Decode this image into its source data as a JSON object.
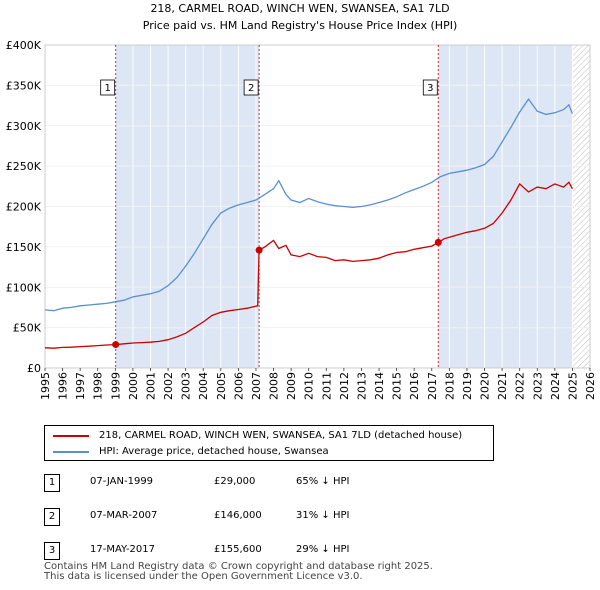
{
  "chart_data": {
    "type": "line",
    "title": "218, CARMEL ROAD, WINCH WEN, SWANSEA, SA1 7LD",
    "subtitle": "Price paid vs. HM Land Registry's House Price Index (HPI)",
    "xlim": [
      1995,
      2026
    ],
    "ylim": [
      0,
      400000
    ],
    "y_ticks": [
      0,
      50000,
      100000,
      150000,
      200000,
      250000,
      300000,
      350000,
      400000
    ],
    "y_tick_labels": [
      "£0",
      "£50K",
      "£100K",
      "£150K",
      "£200K",
      "£250K",
      "£300K",
      "£350K",
      "£400K"
    ],
    "x_ticks": [
      1995,
      1996,
      1997,
      1998,
      1999,
      2000,
      2001,
      2002,
      2003,
      2004,
      2005,
      2006,
      2007,
      2008,
      2009,
      2010,
      2011,
      2012,
      2013,
      2014,
      2015,
      2016,
      2017,
      2018,
      2019,
      2020,
      2021,
      2022,
      2023,
      2024,
      2025,
      2026
    ],
    "x_tick_labels": [
      "1995",
      "1996",
      "1997",
      "1998",
      "1999",
      "2000",
      "2001",
      "2002",
      "2003",
      "2004",
      "2005",
      "2006",
      "2007",
      "2008",
      "2009",
      "2010",
      "2011",
      "2012",
      "2013",
      "2014",
      "2015",
      "2016",
      "2017",
      "2018",
      "2019",
      "2020",
      "2021",
      "2022",
      "2023",
      "2024",
      "2025",
      "2026"
    ],
    "shaded_ranges": [
      [
        1999.02,
        2007.18
      ],
      [
        2017.37,
        2025.0
      ]
    ],
    "hatched_from": 2025.0,
    "series": [
      {
        "name": "218, CARMEL ROAD, WINCH WEN, SWANSEA, SA1 7LD (detached house)",
        "color": "#cc0000",
        "x": [
          1995,
          1995.5,
          1996,
          1996.5,
          1997,
          1997.5,
          1998,
          1998.5,
          1999.02,
          1999.5,
          2000,
          2000.5,
          2001,
          2001.5,
          2002,
          2002.5,
          2003,
          2003.5,
          2004,
          2004.5,
          2005,
          2005.5,
          2006,
          2006.5,
          2007.1,
          2007.18,
          2007.5,
          2008,
          2008.3,
          2008.7,
          2009,
          2009.5,
          2010,
          2010.5,
          2011,
          2011.5,
          2012,
          2012.5,
          2013,
          2013.5,
          2014,
          2014.5,
          2015,
          2015.5,
          2016,
          2016.5,
          2017,
          2017.37,
          2017.7,
          2018,
          2018.5,
          2019,
          2019.5,
          2020,
          2020.5,
          2021,
          2021.5,
          2022,
          2022.5,
          2023,
          2023.5,
          2024,
          2024.5,
          2024.8,
          2025
        ],
        "y": [
          25000,
          24500,
          25500,
          25800,
          26500,
          27000,
          27800,
          28500,
          29000,
          30000,
          31000,
          31500,
          32000,
          33000,
          35000,
          38500,
          43000,
          50000,
          57000,
          65000,
          69000,
          71000,
          72500,
          74000,
          77000,
          146000,
          150000,
          158000,
          148000,
          152000,
          140000,
          138000,
          142000,
          138000,
          137000,
          133000,
          134000,
          132000,
          133000,
          134000,
          136000,
          140000,
          143000,
          144000,
          147000,
          149000,
          151000,
          155600,
          160000,
          162000,
          165000,
          168000,
          170000,
          173000,
          179000,
          192000,
          208000,
          228000,
          218000,
          224000,
          222000,
          228000,
          224000,
          230000,
          222000
        ]
      },
      {
        "name": "HPI: Average price, detached house, Swansea",
        "color": "#5b8fd0",
        "x": [
          1995,
          1995.5,
          1996,
          1996.5,
          1997,
          1997.5,
          1998,
          1998.5,
          1999,
          1999.5,
          2000,
          2000.5,
          2001,
          2001.5,
          2002,
          2002.5,
          2003,
          2003.5,
          2004,
          2004.5,
          2005,
          2005.5,
          2006,
          2006.5,
          2007,
          2007.5,
          2008,
          2008.3,
          2008.7,
          2009,
          2009.5,
          2010,
          2010.5,
          2011,
          2011.5,
          2012,
          2012.5,
          2013,
          2013.5,
          2014,
          2014.5,
          2015,
          2015.5,
          2016,
          2016.5,
          2017,
          2017.5,
          2018,
          2018.5,
          2019,
          2019.5,
          2020,
          2020.5,
          2021,
          2021.5,
          2022,
          2022.5,
          2023,
          2023.5,
          2024,
          2024.5,
          2024.8,
          2025
        ],
        "y": [
          72000,
          71000,
          74000,
          75000,
          77000,
          78000,
          79000,
          80000,
          82000,
          84000,
          88000,
          90000,
          92000,
          95000,
          102000,
          112000,
          126000,
          142000,
          160000,
          178000,
          192000,
          198000,
          202000,
          205000,
          208000,
          215000,
          222000,
          232000,
          215000,
          208000,
          205000,
          210000,
          206000,
          203000,
          201000,
          200000,
          199000,
          200000,
          202000,
          205000,
          208000,
          212000,
          217000,
          221000,
          225000,
          230000,
          237000,
          241000,
          243000,
          245000,
          248000,
          252000,
          262000,
          280000,
          298000,
          317000,
          333000,
          318000,
          314000,
          316000,
          320000,
          326000,
          315000
        ]
      }
    ],
    "markers": [
      {
        "label": "1",
        "x": 1999.02,
        "y": 29000
      },
      {
        "label": "2",
        "x": 2007.18,
        "y": 146000
      },
      {
        "label": "3",
        "x": 2017.37,
        "y": 155600
      }
    ]
  },
  "legend": {
    "property_label": "218, CARMEL ROAD, WINCH WEN, SWANSEA, SA1 7LD (detached house)",
    "hpi_label": "HPI: Average price, detached house, Swansea"
  },
  "sales": [
    {
      "num": "1",
      "date": "07-JAN-1999",
      "price": "£29,000",
      "hpi": "65% ↓ HPI"
    },
    {
      "num": "2",
      "date": "07-MAR-2007",
      "price": "£146,000",
      "hpi": "31% ↓ HPI"
    },
    {
      "num": "3",
      "date": "17-MAY-2017",
      "price": "£155,600",
      "hpi": "29% ↓ HPI"
    }
  ],
  "footer": {
    "line1": "Contains HM Land Registry data © Crown copyright and database right 2025.",
    "line2": "This data is licensed under the Open Government Licence v3.0."
  }
}
